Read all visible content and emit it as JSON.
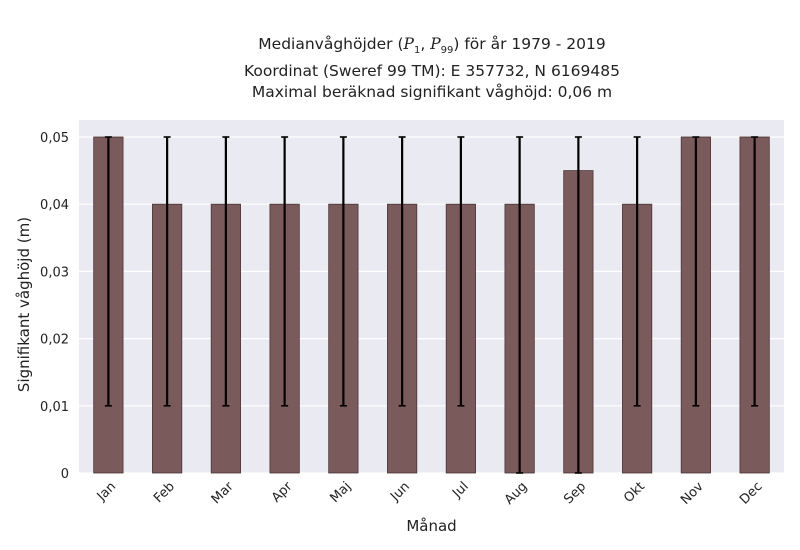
{
  "title": {
    "line1_prefix": "Medianvåghöjder (",
    "p_low": "P",
    "p_low_sub": "1",
    "p_sep": ", ",
    "p_high": "P",
    "p_high_sub": "99",
    "line1_suffix": ") för år 1979 - 2019",
    "line2": "Koordinat (Sweref 99 TM): E 357732, N 6169485",
    "line3": "Maximal beräknad signifikant våghöjd: 0,06 m"
  },
  "chart_data": {
    "type": "bar",
    "title": "Medianvåghöjder (P1, P99) för år 1979 - 2019",
    "xlabel": "Månad",
    "ylabel": "Signifikant våghöjd (m)",
    "categories": [
      "Jan",
      "Feb",
      "Mar",
      "Apr",
      "Maj",
      "Jun",
      "Jul",
      "Aug",
      "Sep",
      "Okt",
      "Nov",
      "Dec"
    ],
    "series": [
      {
        "values": [
          0.05,
          0.04,
          0.04,
          0.04,
          0.04,
          0.04,
          0.04,
          0.04,
          0.045,
          0.04,
          0.05,
          0.05
        ],
        "p1": [
          0.01,
          0.01,
          0.01,
          0.01,
          0.01,
          0.01,
          0.01,
          0.0,
          0.0,
          0.01,
          0.01,
          0.01
        ],
        "p99": [
          0.05,
          0.05,
          0.05,
          0.05,
          0.05,
          0.05,
          0.05,
          0.05,
          0.05,
          0.05,
          0.05,
          0.05
        ]
      }
    ],
    "ylim": [
      0,
      0.05
    ],
    "yticks": [
      0,
      0.01,
      0.02,
      0.03,
      0.04,
      0.05
    ],
    "ytick_labels": [
      "0",
      "0,01",
      "0,02",
      "0,03",
      "0,04",
      "0,05"
    ],
    "grid": true,
    "colors": {
      "bar": "#7a5a5a",
      "bar_edge": "#4a3434",
      "errorbar": "#000000",
      "background": "#eaeaf2",
      "grid": "#ffffff"
    }
  }
}
